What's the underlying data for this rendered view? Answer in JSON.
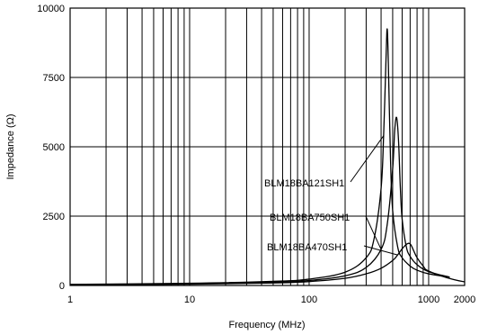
{
  "chart_data": {
    "type": "line",
    "title": "",
    "xlabel": "Frequency (MHz)",
    "ylabel": "Impedance (Ω)",
    "xscale": "log",
    "xlim": [
      1,
      2000
    ],
    "ylim": [
      0,
      10000
    ],
    "xticks": [
      {
        "value": 1,
        "label": "1"
      },
      {
        "value": 10,
        "label": "10"
      },
      {
        "value": 100,
        "label": "100"
      },
      {
        "value": 1000,
        "label": "1000"
      },
      {
        "value": 2000,
        "label": "2000"
      }
    ],
    "yticks": [
      {
        "value": 0,
        "label": "0"
      },
      {
        "value": 2500,
        "label": "2500"
      },
      {
        "value": 5000,
        "label": "5000"
      },
      {
        "value": 7500,
        "label": "7500"
      },
      {
        "value": 10000,
        "label": "10000"
      }
    ],
    "grid": true,
    "legend": "none",
    "series": [
      {
        "name": "BLM18BA121SH1",
        "x": [
          1,
          10,
          50,
          100,
          200,
          300,
          350,
          400,
          420,
          440,
          450,
          460,
          480,
          500,
          550,
          600,
          700,
          800,
          1000,
          1500
        ],
        "y": [
          40,
          80,
          150,
          230,
          480,
          1000,
          1700,
          3500,
          5400,
          8200,
          9250,
          8000,
          4500,
          2700,
          1400,
          1000,
          700,
          550,
          420,
          300
        ]
      },
      {
        "name": "BLM18BA750SH1",
        "x": [
          1,
          10,
          50,
          100,
          200,
          300,
          400,
          450,
          500,
          520,
          540,
          560,
          580,
          600,
          650,
          700,
          800,
          1000,
          1500
        ],
        "y": [
          30,
          60,
          120,
          180,
          350,
          650,
          1300,
          2200,
          4200,
          5600,
          6050,
          5200,
          3500,
          2400,
          1400,
          1050,
          750,
          500,
          300
        ]
      },
      {
        "name": "BLM18BA470SH1",
        "x": [
          1,
          10,
          50,
          100,
          200,
          300,
          400,
          500,
          550,
          600,
          650,
          680,
          700,
          720,
          750,
          800,
          900,
          1000,
          1500,
          2000
        ],
        "y": [
          25,
          45,
          90,
          140,
          260,
          420,
          620,
          900,
          1100,
          1320,
          1480,
          1520,
          1500,
          1420,
          1250,
          1000,
          700,
          520,
          250,
          130
        ]
      }
    ],
    "labels": [
      "BLM18BA121SH1",
      "BLM18BA750SH1",
      "BLM18BA470SH1"
    ]
  }
}
